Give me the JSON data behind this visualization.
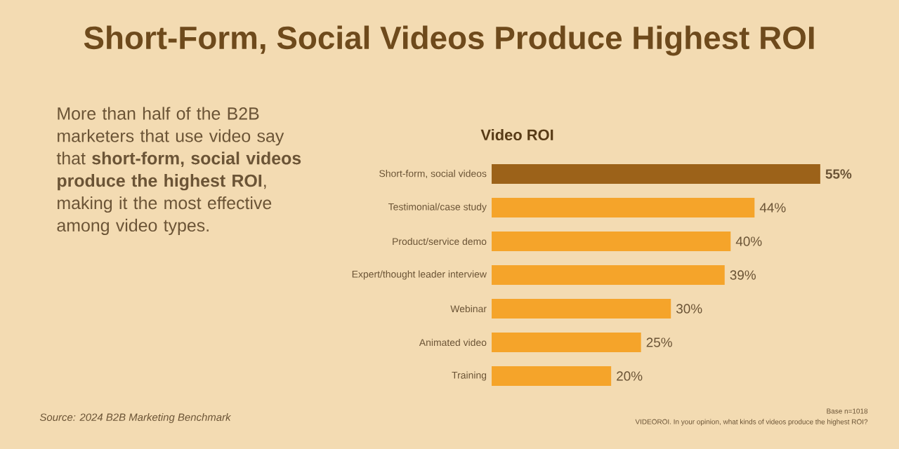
{
  "chart_data": {
    "type": "bar",
    "orientation": "horizontal",
    "title": "Short-Form, Social Videos Produce Highest ROI",
    "subtitle": "Video ROI",
    "categories": [
      "Short-form, social videos",
      "Testimonial/case study",
      "Product/service demo",
      "Expert/thought leader interview",
      "Webinar",
      "Animated video",
      "Training"
    ],
    "values": [
      55,
      44,
      40,
      39,
      30,
      25,
      20
    ],
    "value_labels": [
      "55%",
      "44%",
      "40%",
      "39%",
      "30%",
      "25%",
      "20%"
    ],
    "colors": [
      "#9c6219",
      "#f5a42a",
      "#f5a42a",
      "#f5a42a",
      "#f5a42a",
      "#f5a42a",
      "#f5a42a"
    ],
    "annotations": [
      "More than half of the B2B marketers that use video say that **short-form, social videos produce the highest ROI**, making it the most effective among video types.",
      "Source: 2024 B2B Marketing Benchmark",
      "Base n=1018",
      "VIDEOROI. In your opinion, what kinds of videos produce the highest ROI?"
    ]
  }
}
